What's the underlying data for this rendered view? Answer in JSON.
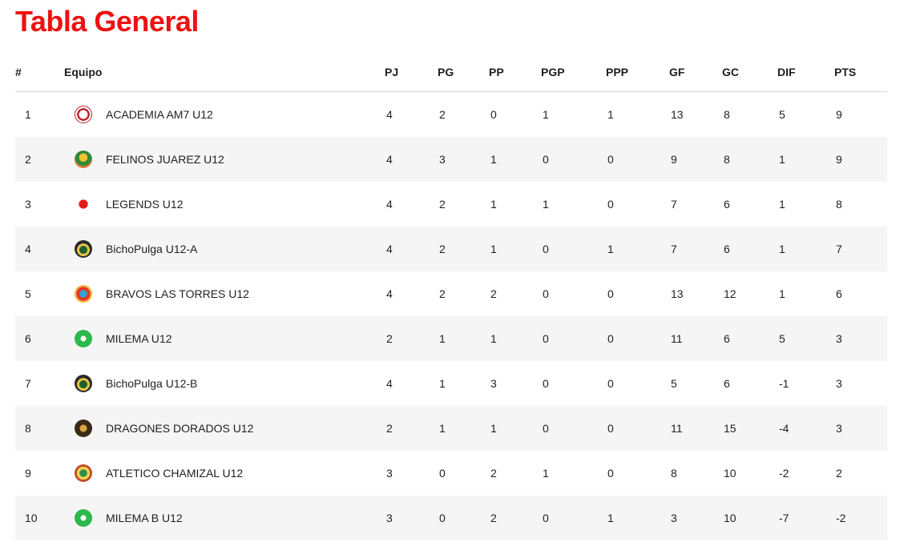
{
  "page": {
    "title": "Tabla General"
  },
  "table": {
    "headers": {
      "pos": "#",
      "team": "Equipo",
      "pj": "PJ",
      "pg": "PG",
      "pp": "PP",
      "pgp": "PGP",
      "ppp": "PPP",
      "gf": "GF",
      "gc": "GC",
      "dif": "DIF",
      "pts": "PTS"
    },
    "rows": [
      {
        "pos": "1",
        "team": "ACADEMIA AM7 U12",
        "logo": "academia-logo-icon",
        "pj": "4",
        "pg": "2",
        "pp": "0",
        "pgp": "1",
        "ppp": "1",
        "gf": "13",
        "gc": "8",
        "dif": "5",
        "pts": "9"
      },
      {
        "pos": "2",
        "team": "FELINOS JUAREZ U12",
        "logo": "felinos-logo-icon",
        "pj": "4",
        "pg": "3",
        "pp": "1",
        "pgp": "0",
        "ppp": "0",
        "gf": "9",
        "gc": "8",
        "dif": "1",
        "pts": "9"
      },
      {
        "pos": "3",
        "team": "LEGENDS U12",
        "logo": "legends-logo-icon",
        "pj": "4",
        "pg": "2",
        "pp": "1",
        "pgp": "1",
        "ppp": "0",
        "gf": "7",
        "gc": "6",
        "dif": "1",
        "pts": "8"
      },
      {
        "pos": "4",
        "team": "BichoPulga U12-A",
        "logo": "bichopulga-logo-icon",
        "pj": "4",
        "pg": "2",
        "pp": "1",
        "pgp": "0",
        "ppp": "1",
        "gf": "7",
        "gc": "6",
        "dif": "1",
        "pts": "7"
      },
      {
        "pos": "5",
        "team": "BRAVOS LAS TORRES U12",
        "logo": "bravos-logo-icon",
        "pj": "4",
        "pg": "2",
        "pp": "2",
        "pgp": "0",
        "ppp": "0",
        "gf": "13",
        "gc": "12",
        "dif": "1",
        "pts": "6"
      },
      {
        "pos": "6",
        "team": "MILEMA U12",
        "logo": "milema-logo-icon",
        "pj": "2",
        "pg": "1",
        "pp": "1",
        "pgp": "0",
        "ppp": "0",
        "gf": "11",
        "gc": "6",
        "dif": "5",
        "pts": "3"
      },
      {
        "pos": "7",
        "team": "BichoPulga U12-B",
        "logo": "bichopulga-logo-icon",
        "pj": "4",
        "pg": "1",
        "pp": "3",
        "pgp": "0",
        "ppp": "0",
        "gf": "5",
        "gc": "6",
        "dif": "-1",
        "pts": "3"
      },
      {
        "pos": "8",
        "team": "DRAGONES DORADOS U12",
        "logo": "dragones-logo-icon",
        "pj": "2",
        "pg": "1",
        "pp": "1",
        "pgp": "0",
        "ppp": "0",
        "gf": "11",
        "gc": "15",
        "dif": "-4",
        "pts": "3"
      },
      {
        "pos": "9",
        "team": "ATLETICO CHAMIZAL U12",
        "logo": "atletico-logo-icon",
        "pj": "3",
        "pg": "0",
        "pp": "2",
        "pgp": "1",
        "ppp": "0",
        "gf": "8",
        "gc": "10",
        "dif": "-2",
        "pts": "2"
      },
      {
        "pos": "10",
        "team": "MILEMA B U12",
        "logo": "milema-logo-icon",
        "pj": "3",
        "pg": "0",
        "pp": "2",
        "pgp": "0",
        "ppp": "1",
        "gf": "3",
        "gc": "10",
        "dif": "-7",
        "pts": "-2"
      }
    ]
  },
  "colors": {
    "title": "#ee1111",
    "stripe": "#f5f5f5",
    "divider": "#d6d6d6"
  }
}
